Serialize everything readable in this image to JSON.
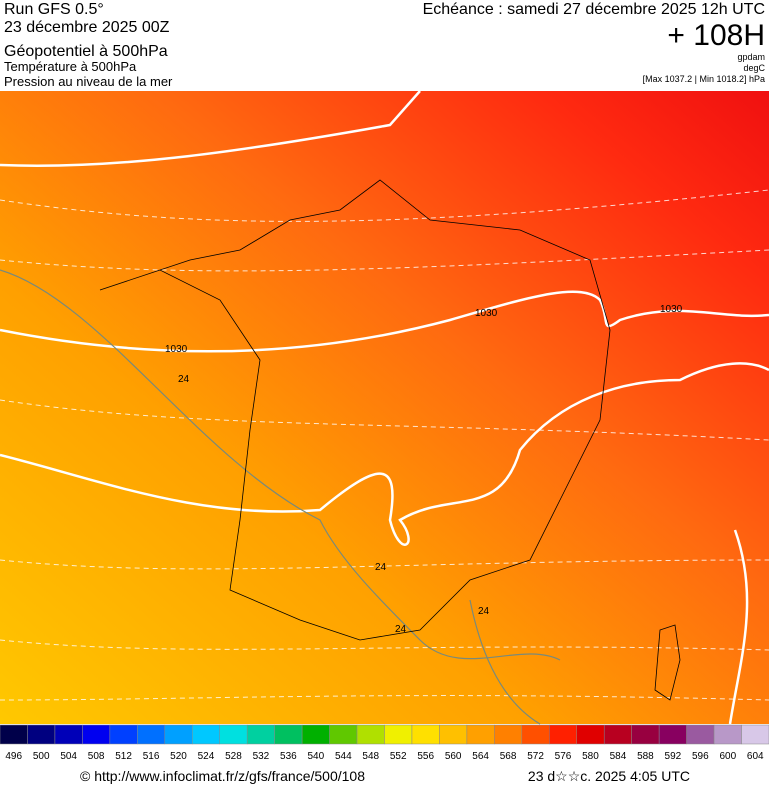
{
  "header": {
    "run": "Run GFS 0.5°",
    "date": "23 décembre 2025 00Z",
    "field1": "Géopotentiel à 500hPa",
    "field2": "Température à 500hPa",
    "field3": "Pression au niveau de la mer",
    "valid": "Echéance : samedi 27 décembre 2025 12h UTC",
    "lead": "+ 108H",
    "unit1": "gpdam",
    "unit2": "degC",
    "range": "[Max 1037.2 | Min 1018.2] hPa"
  },
  "map": {
    "labels": [
      "1030",
      "1030",
      "1030",
      "24",
      "24",
      "24",
      "24"
    ]
  },
  "colorbar": {
    "labels": [
      "496",
      "500",
      "504",
      "508",
      "512",
      "516",
      "520",
      "524",
      "528",
      "532",
      "536",
      "540",
      "544",
      "548",
      "552",
      "556",
      "560",
      "564",
      "568",
      "572",
      "576",
      "580",
      "584",
      "588",
      "592",
      "596",
      "600",
      "604"
    ],
    "colors": [
      "#00004a",
      "#000080",
      "#0000b8",
      "#0000f0",
      "#0040ff",
      "#0070ff",
      "#00a0ff",
      "#00c8ff",
      "#00e0e0",
      "#00d0a0",
      "#00c060",
      "#00b000",
      "#60c800",
      "#b0e000",
      "#f0f000",
      "#ffe000",
      "#ffc000",
      "#ffa000",
      "#ff8000",
      "#ff5000",
      "#ff2000",
      "#e00000",
      "#b80020",
      "#980040",
      "#880060",
      "#9a5aa0",
      "#b898c8",
      "#d8c8e8"
    ]
  },
  "footer": {
    "url": "© http://www.infoclimat.fr/z/gfs/france/500/108",
    "stamp": "23 d☆☆c. 2025  4:05 UTC"
  }
}
